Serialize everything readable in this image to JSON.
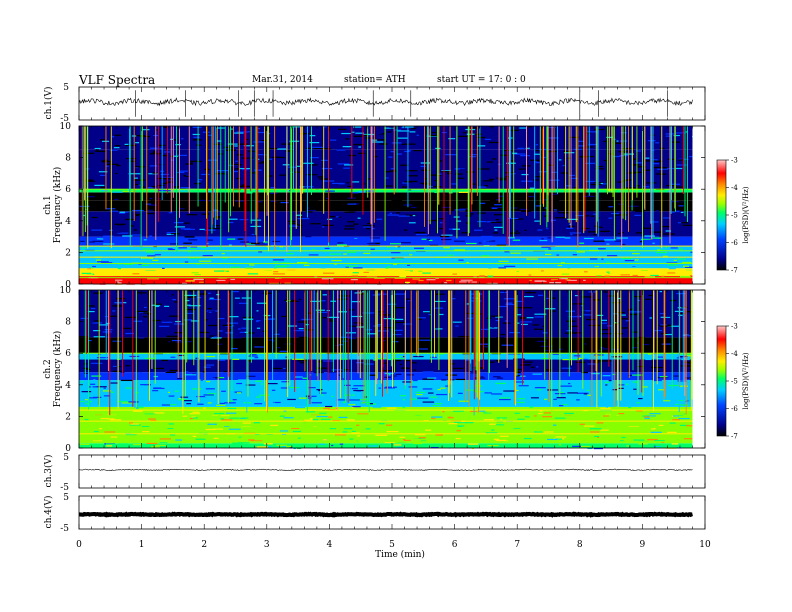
{
  "header": {
    "title": "VLF  Spectra",
    "date": "Mar.31, 2014",
    "station": "station= ATH",
    "start": "start  UT  =    17: 0  : 0"
  },
  "chart_data": {
    "type": "heatmap",
    "xlabel": "Time  (min)",
    "xlim": [
      0,
      10
    ],
    "xticks": [
      "0",
      "1",
      "2",
      "3",
      "4",
      "5",
      "6",
      "7",
      "8",
      "9",
      "10"
    ],
    "data_end_min": 9.8,
    "panels": [
      {
        "id": "ch1-waveform",
        "type": "line",
        "ylabel": "ch.1(V)",
        "ylim": [
          -5,
          5
        ],
        "yticks": [
          "5",
          "-5"
        ],
        "baseline_value": 0.5,
        "spike_times_min": [
          0.9,
          1.7,
          2.55,
          2.8,
          3.1,
          4.7,
          5.3,
          8.0,
          8.3,
          9.4
        ]
      },
      {
        "id": "ch1-spectrogram",
        "type": "heatmap",
        "ylabel": "ch.1",
        "ylabel2": "Frequency  (kHz)",
        "ylim": [
          0,
          10
        ],
        "yticks": [
          "0",
          "2",
          "4",
          "6",
          "8",
          "10"
        ],
        "colorbar": {
          "label": "log(PSD)(V²/Hz)",
          "range": [
            -7,
            -3
          ],
          "ticks": [
            "-3",
            "-4",
            "-5",
            "-6",
            "-7"
          ]
        },
        "bands": [
          {
            "f": [
              0,
              0.5
            ],
            "level": -3.6
          },
          {
            "f": [
              0.5,
              1.0
            ],
            "level": -4.6
          },
          {
            "f": [
              1.0,
              2.4
            ],
            "level": -5.4
          },
          {
            "f": [
              2.4,
              3.0
            ],
            "level": -6.0
          },
          {
            "f": [
              3.0,
              4.6
            ],
            "level": -6.4
          },
          {
            "f": [
              4.6,
              5.3
            ],
            "level": -6.7
          },
          {
            "f": [
              5.3,
              5.8
            ],
            "level": -7.0
          },
          {
            "f": [
              5.8,
              6.0
            ],
            "level": -5.3
          },
          {
            "f": [
              6.0,
              8.5
            ],
            "level": -6.5
          },
          {
            "f": [
              8.5,
              10.0
            ],
            "level": -6.2
          }
        ]
      },
      {
        "id": "ch2-spectrogram",
        "type": "heatmap",
        "ylabel": "ch.2",
        "ylabel2": "Frequency  (kHz)",
        "ylim": [
          0,
          10
        ],
        "yticks": [
          "0",
          "2",
          "4",
          "6",
          "8",
          "10"
        ],
        "colorbar": {
          "label": "log(PSD)(V²/Hz)",
          "range": [
            -7,
            -3
          ],
          "ticks": [
            "-3",
            "-4",
            "-5",
            "-6",
            "-7"
          ]
        },
        "bands": [
          {
            "f": [
              0,
              0.3
            ],
            "level": -5.2
          },
          {
            "f": [
              0.3,
              2.6
            ],
            "level": -4.7
          },
          {
            "f": [
              2.6,
              4.3
            ],
            "level": -5.6
          },
          {
            "f": [
              4.3,
              4.8
            ],
            "level": -6.0
          },
          {
            "f": [
              4.8,
              5.6
            ],
            "level": -6.6
          },
          {
            "f": [
              5.6,
              6.0
            ],
            "level": -5.6
          },
          {
            "f": [
              6.0,
              7.0
            ],
            "level": -6.8
          },
          {
            "f": [
              7.0,
              10.0
            ],
            "level": -6.3
          }
        ]
      },
      {
        "id": "ch3-waveform",
        "type": "line",
        "ylabel": "ch.3(V)",
        "ylim": [
          -5,
          5
        ],
        "yticks": [
          "5",
          "-5"
        ],
        "baseline_value": 0.5
      },
      {
        "id": "ch4-waveform",
        "type": "line",
        "ylabel": "ch.4(V)",
        "ylim": [
          -5,
          5
        ],
        "yticks": [
          "5",
          "-5"
        ],
        "baseline_value": -0.6
      }
    ],
    "colormap": [
      "#000000",
      "#000088",
      "#0033ff",
      "#00c8ff",
      "#00ff66",
      "#88ff00",
      "#ffee00",
      "#ff8800",
      "#ff0000",
      "#ff9999"
    ]
  }
}
